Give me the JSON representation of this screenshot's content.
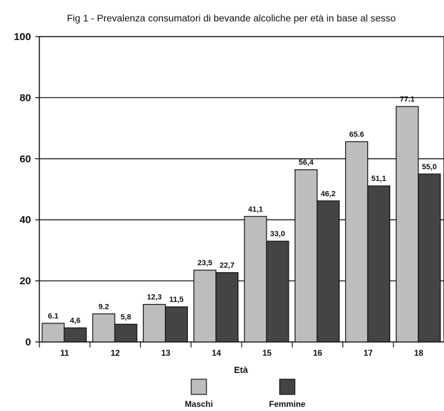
{
  "chart_data": {
    "type": "bar",
    "title": "Fig 1 - Prevalenza consumatori di bevande alcoliche per età in base al sesso",
    "xlabel": "Età",
    "ylabel": "",
    "categories": [
      "11",
      "12",
      "13",
      "14",
      "15",
      "16",
      "17",
      "18"
    ],
    "series": [
      {
        "name": "Maschi",
        "color": "#bdbdbd",
        "values": [
          6.1,
          9.2,
          12.3,
          23.5,
          41.1,
          56.4,
          65.6,
          77.1
        ],
        "labels": [
          "6.1",
          "9.2",
          "12,3",
          "23,5",
          "41,1",
          "56,4",
          "65.6",
          "77.1"
        ]
      },
      {
        "name": "Femmine",
        "color": "#444444",
        "values": [
          4.6,
          5.8,
          11.5,
          22.7,
          33.0,
          46.2,
          51.1,
          55.0
        ],
        "labels": [
          "4,6",
          "5,8",
          "11,5",
          "22,7",
          "33,0",
          "46,2",
          "51,1",
          "55,0"
        ]
      }
    ],
    "yticks": [
      "0",
      "20",
      "40",
      "60",
      "80",
      "100"
    ],
    "ylim": [
      0,
      100
    ],
    "grid": true,
    "legend": "bottom-center"
  }
}
